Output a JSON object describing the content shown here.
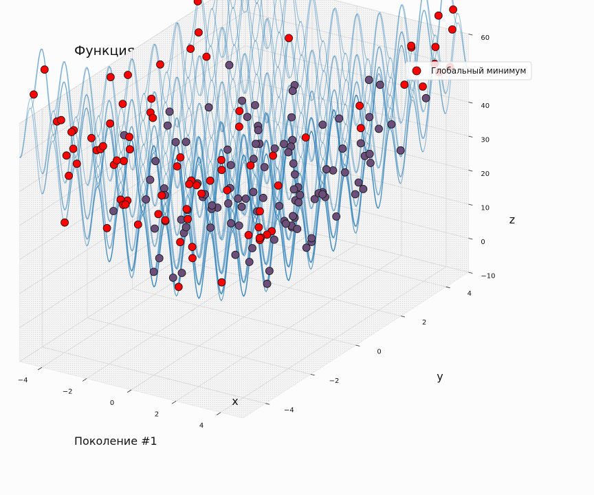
{
  "chart_data": {
    "type": "surface3d-scatter",
    "title": "Функция Растригина",
    "function": "rastrigin",
    "xlabel": "x",
    "ylabel": "y",
    "zlabel": "z",
    "xlim": [
      -5,
      5
    ],
    "ylim": [
      -5,
      5
    ],
    "zlim": [
      -10,
      60
    ],
    "x_ticks": [
      -4,
      -2,
      0,
      2,
      4
    ],
    "y_ticks": [
      -4,
      -2,
      0,
      2,
      4
    ],
    "z_ticks": [
      -10,
      0,
      10,
      20,
      30,
      40,
      50,
      60
    ],
    "grid": true,
    "legend": {
      "position": "top-right",
      "entries": [
        "Глобальный минимум"
      ]
    },
    "surface_color": "#1f77b4",
    "point_color": "#ff0000",
    "point_edge_color": "#111111",
    "population_size": 200
  },
  "generation_label": "Поколение #1"
}
